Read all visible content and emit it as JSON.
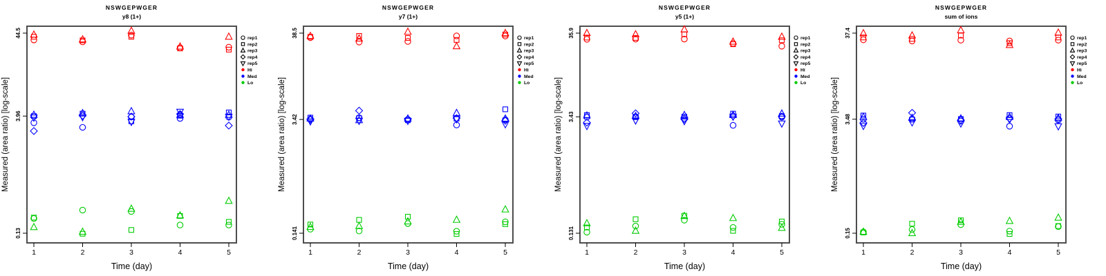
{
  "figure": {
    "ylabel": "Measured (area ratio) [log-scale]",
    "xlabel": "Time (day)",
    "title": "NSWGEPWGER",
    "axis_color": "#4d4d4d",
    "legend": {
      "reps": [
        {
          "label": "rep1",
          "marker": "circle"
        },
        {
          "label": "rep2",
          "marker": "square"
        },
        {
          "label": "rep3",
          "marker": "triangle-up"
        },
        {
          "label": "rep4",
          "marker": "diamond"
        },
        {
          "label": "rep5",
          "marker": "triangle-down"
        }
      ],
      "levels": [
        {
          "label": "Hi",
          "color": "#FF0000"
        },
        {
          "label": "Med",
          "color": "#0000FF"
        },
        {
          "label": "Lo",
          "color": "#00CC00"
        }
      ]
    }
  },
  "chart_data": [
    {
      "type": "scatter",
      "title": "NSWGEPWGER",
      "subtitle": "y8 (1+)",
      "xlabel": "Time (day)",
      "ylabel": "Measured (area ratio) [log-scale]",
      "x": [
        1,
        2,
        3,
        4,
        5
      ],
      "ylog": true,
      "yticks": [
        "44.5",
        "3.96",
        "0.13"
      ],
      "legend_position": "right",
      "series": [
        {
          "level": "Hi",
          "rep": "rep1",
          "marker": "circle",
          "color": "#FF0000",
          "values": [
            36.5,
            34.5,
            42.0,
            29.0,
            29.5
          ]
        },
        {
          "level": "Hi",
          "rep": "rep2",
          "marker": "square",
          "color": "#FF0000",
          "values": [
            40.0,
            36.0,
            40.0,
            28.5,
            27.5
          ]
        },
        {
          "level": "Hi",
          "rep": "rep3",
          "marker": "triangle-up",
          "color": "#FF0000",
          "values": [
            42.5,
            37.0,
            47.5,
            30.0,
            40.0
          ]
        },
        {
          "level": "Med",
          "rep": "rep1",
          "marker": "circle",
          "color": "#0000FF",
          "values": [
            3.26,
            2.85,
            3.85,
            3.7,
            3.85
          ]
        },
        {
          "level": "Med",
          "rep": "rep2",
          "marker": "square",
          "color": "#0000FF",
          "values": [
            3.96,
            4.25,
            3.4,
            4.0,
            4.4
          ]
        },
        {
          "level": "Med",
          "rep": "rep3",
          "marker": "triangle-up",
          "color": "#0000FF",
          "values": [
            4.1,
            4.3,
            4.55,
            4.1,
            4.1
          ]
        },
        {
          "level": "Med",
          "rep": "rep4",
          "marker": "diamond",
          "color": "#0000FF",
          "values": [
            2.56,
            4.0,
            3.9,
            4.2,
            3.0
          ]
        },
        {
          "level": "Med",
          "rep": "rep5",
          "marker": "triangle-down",
          "color": "#0000FF",
          "values": [
            3.8,
            3.85,
            3.35,
            4.5,
            3.9
          ]
        },
        {
          "level": "Lo",
          "rep": "rep1",
          "marker": "circle",
          "color": "#00CC00",
          "values": [
            0.2,
            0.255,
            0.245,
            0.165,
            0.165
          ]
        },
        {
          "level": "Lo",
          "rep": "rep2",
          "marker": "square",
          "color": "#00CC00",
          "values": [
            0.205,
            0.128,
            0.143,
            0.215,
            0.181
          ]
        },
        {
          "level": "Lo",
          "rep": "rep3",
          "marker": "triangle-up",
          "color": "#00CC00",
          "values": [
            0.155,
            0.135,
            0.265,
            0.218,
            0.333
          ]
        }
      ]
    },
    {
      "type": "scatter",
      "title": "NSWGEPWGER",
      "subtitle": "y7 (1+)",
      "xlabel": "Time (day)",
      "ylabel": "Measured (area ratio) [log-scale]",
      "x": [
        1,
        2,
        3,
        4,
        5
      ],
      "ylog": true,
      "yticks": [
        "38.5",
        "3.42",
        "0.141"
      ],
      "legend_position": "right",
      "series": [
        {
          "level": "Hi",
          "rep": "rep1",
          "marker": "circle",
          "color": "#FF0000",
          "values": [
            33.9,
            30.0,
            30.5,
            35.6,
            35.5
          ]
        },
        {
          "level": "Hi",
          "rep": "rep2",
          "marker": "square",
          "color": "#FF0000",
          "values": [
            34.7,
            35.6,
            33.6,
            31.8,
            37.0
          ]
        },
        {
          "level": "Hi",
          "rep": "rep3",
          "marker": "triangle-up",
          "color": "#FF0000",
          "values": [
            35.5,
            33.0,
            39.9,
            26.6,
            38.5
          ]
        },
        {
          "level": "Med",
          "rep": "rep1",
          "marker": "circle",
          "color": "#0000FF",
          "values": [
            3.45,
            3.58,
            3.42,
            2.93,
            3.4
          ]
        },
        {
          "level": "Med",
          "rep": "rep2",
          "marker": "square",
          "color": "#0000FF",
          "values": [
            3.6,
            3.55,
            3.35,
            3.5,
            4.55
          ]
        },
        {
          "level": "Med",
          "rep": "rep3",
          "marker": "triangle-up",
          "color": "#0000FF",
          "values": [
            3.5,
            3.35,
            3.5,
            4.1,
            3.5
          ]
        },
        {
          "level": "Med",
          "rep": "rep4",
          "marker": "diamond",
          "color": "#0000FF",
          "values": [
            3.4,
            4.38,
            3.45,
            3.55,
            3.3
          ]
        },
        {
          "level": "Med",
          "rep": "rep5",
          "marker": "triangle-down",
          "color": "#0000FF",
          "values": [
            3.25,
            3.3,
            3.3,
            3.45,
            3.0
          ]
        },
        {
          "level": "Lo",
          "rep": "rep1",
          "marker": "circle",
          "color": "#00CC00",
          "values": [
            0.158,
            0.15,
            0.185,
            0.149,
            0.194
          ]
        },
        {
          "level": "Lo",
          "rep": "rep2",
          "marker": "square",
          "color": "#00CC00",
          "values": [
            0.18,
            0.205,
            0.224,
            0.138,
            0.182
          ]
        },
        {
          "level": "Lo",
          "rep": "rep3",
          "marker": "triangle-up",
          "color": "#00CC00",
          "values": [
            0.168,
            0.172,
            0.196,
            0.205,
            0.274
          ]
        }
      ]
    },
    {
      "type": "scatter",
      "title": "NSWGEPWGER",
      "subtitle": "y5 (1+)",
      "xlabel": "Time (day)",
      "ylabel": "Measured (area ratio) [log-scale]",
      "x": [
        1,
        2,
        3,
        4,
        5
      ],
      "ylog": true,
      "yticks": [
        "35.9",
        "3.43",
        "0.131"
      ],
      "legend_position": "right",
      "series": [
        {
          "level": "Hi",
          "rep": "rep1",
          "marker": "circle",
          "color": "#FF0000",
          "values": [
            30.2,
            30.4,
            30.4,
            26.9,
            24.9
          ]
        },
        {
          "level": "Hi",
          "rep": "rep2",
          "marker": "square",
          "color": "#FF0000",
          "values": [
            31.7,
            31.4,
            34.7,
            26.3,
            29.4
          ]
        },
        {
          "level": "Hi",
          "rep": "rep3",
          "marker": "triangle-up",
          "color": "#FF0000",
          "values": [
            35.9,
            34.7,
            39.7,
            28.2,
            32.4
          ]
        },
        {
          "level": "Med",
          "rep": "rep1",
          "marker": "circle",
          "color": "#0000FF",
          "values": [
            3.4,
            3.45,
            3.3,
            2.7,
            3.4
          ]
        },
        {
          "level": "Med",
          "rep": "rep2",
          "marker": "square",
          "color": "#0000FF",
          "values": [
            3.6,
            3.4,
            3.45,
            3.75,
            3.5
          ]
        },
        {
          "level": "Med",
          "rep": "rep3",
          "marker": "triangle-up",
          "color": "#0000FF",
          "values": [
            3.55,
            3.5,
            3.6,
            3.6,
            3.75
          ]
        },
        {
          "level": "Med",
          "rep": "rep4",
          "marker": "diamond",
          "color": "#0000FF",
          "values": [
            2.92,
            3.78,
            3.2,
            3.5,
            3.45
          ]
        },
        {
          "level": "Med",
          "rep": "rep5",
          "marker": "triangle-down",
          "color": "#0000FF",
          "values": [
            2.66,
            3.1,
            3.05,
            3.45,
            2.85
          ]
        },
        {
          "level": "Lo",
          "rep": "rep1",
          "marker": "circle",
          "color": "#00CC00",
          "values": [
            0.135,
            0.16,
            0.189,
            0.154,
            0.168
          ]
        },
        {
          "level": "Lo",
          "rep": "rep2",
          "marker": "square",
          "color": "#00CC00",
          "values": [
            0.154,
            0.194,
            0.214,
            0.14,
            0.182
          ]
        },
        {
          "level": "Lo",
          "rep": "rep3",
          "marker": "triangle-up",
          "color": "#00CC00",
          "values": [
            0.173,
            0.14,
            0.212,
            0.2,
            0.152
          ]
        }
      ]
    },
    {
      "type": "scatter",
      "title": "NSWGEPWGER",
      "subtitle": "sum of ions",
      "xlabel": "Time (day)",
      "ylabel": "Measured (area ratio) [log-scale]",
      "x": [
        1,
        2,
        3,
        4,
        5
      ],
      "ylog": true,
      "yticks": [
        "37.4",
        "3.48",
        "0.15"
      ],
      "legend_position": "right",
      "series": [
        {
          "level": "Hi",
          "rep": "rep1",
          "marker": "circle",
          "color": "#FF0000",
          "values": [
            31.1,
            30.1,
            30.8,
            30.1,
            30.8
          ]
        },
        {
          "level": "Hi",
          "rep": "rep2",
          "marker": "square",
          "color": "#FF0000",
          "values": [
            33.2,
            31.9,
            35.0,
            28.4,
            33.2
          ]
        },
        {
          "level": "Hi",
          "rep": "rep3",
          "marker": "triangle-up",
          "color": "#FF0000",
          "values": [
            37.2,
            35.0,
            40.4,
            26.9,
            37.8
          ]
        },
        {
          "level": "Med",
          "rep": "rep1",
          "marker": "circle",
          "color": "#0000FF",
          "values": [
            3.48,
            3.5,
            3.3,
            2.87,
            3.4
          ]
        },
        {
          "level": "Med",
          "rep": "rep2",
          "marker": "square",
          "color": "#0000FF",
          "values": [
            3.85,
            3.45,
            3.5,
            3.9,
            3.75
          ]
        },
        {
          "level": "Med",
          "rep": "rep3",
          "marker": "triangle-up",
          "color": "#0000FF",
          "values": [
            3.7,
            3.6,
            3.55,
            3.7,
            3.6
          ]
        },
        {
          "level": "Med",
          "rep": "rep4",
          "marker": "diamond",
          "color": "#0000FF",
          "values": [
            3.14,
            4.15,
            3.4,
            3.55,
            3.5
          ]
        },
        {
          "level": "Med",
          "rep": "rep5",
          "marker": "triangle-down",
          "color": "#0000FF",
          "values": [
            2.9,
            3.2,
            3.1,
            3.45,
            2.87
          ]
        },
        {
          "level": "Lo",
          "rep": "rep1",
          "marker": "circle",
          "color": "#00CC00",
          "values": [
            0.155,
            0.166,
            0.19,
            0.159,
            0.18
          ]
        },
        {
          "level": "Lo",
          "rep": "rep2",
          "marker": "square",
          "color": "#00CC00",
          "values": [
            0.153,
            0.195,
            0.214,
            0.147,
            0.183
          ]
        },
        {
          "level": "Lo",
          "rep": "rep3",
          "marker": "triangle-up",
          "color": "#00CC00",
          "values": [
            0.156,
            0.15,
            0.205,
            0.21,
            0.23
          ]
        }
      ]
    }
  ]
}
